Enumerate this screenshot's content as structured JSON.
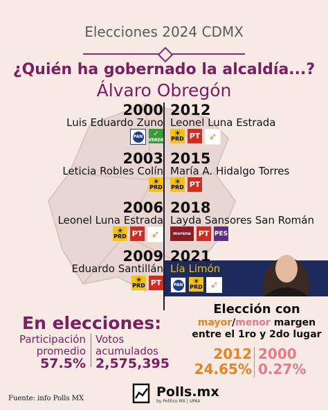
{
  "header": {
    "title": "Elecciones 2024 CDMX",
    "question": "¿Quién ha gobernado la alcaldía...?",
    "alcaldia": "Álvaro Obregón"
  },
  "timeline": [
    {
      "year": "2000",
      "name": "Luis Eduardo Zuno",
      "parties": [
        "PAN",
        "VERDE"
      ]
    },
    {
      "year": "2003",
      "name": "Leticia Robles Colín",
      "parties": [
        "PRD"
      ]
    },
    {
      "year": "2006",
      "name": "Leonel Luna Estrada",
      "parties": [
        "PRD",
        "PT",
        "MC"
      ]
    },
    {
      "year": "2009",
      "name": "Eduardo Santillán",
      "parties": [
        "PRD",
        "PT"
      ]
    },
    {
      "year": "2012",
      "name": "Leonel Luna Estrada",
      "parties": [
        "PRD",
        "PT",
        "MC"
      ]
    },
    {
      "year": "2015",
      "name": "María A. Hidalgo Torres",
      "parties": [
        "PRD",
        "PT"
      ]
    },
    {
      "year": "2018",
      "name": "Layda Sansores San Román",
      "parties": [
        "morena",
        "PT",
        "PES"
      ]
    },
    {
      "year": "2021",
      "name": "Lía Limón",
      "parties": [
        "PAN",
        "PRD",
        "MC"
      ]
    }
  ],
  "logo_labels": {
    "pan": "PAN",
    "verde": "VERDE",
    "prd": "PRD",
    "pt": "PT",
    "morena": "morena",
    "pes": "PES"
  },
  "stats": {
    "heading": "En elecciones:",
    "participation_label_1": "Participación",
    "participation_label_2": "promedio",
    "participation_value": "57.5%",
    "votes_label_1": "Votos",
    "votes_label_2": "acumulados",
    "votes_value": "2,575,395"
  },
  "margins": {
    "title_1": "Elección con",
    "mayor": "mayor",
    "slash": "/",
    "menor": "menor",
    "margen": " margen",
    "title_3": "entre el 1ro y 2do lugar",
    "max_year": "2012",
    "max_value": "24.65%",
    "min_year": "2000",
    "min_value": "0.27%"
  },
  "footer": {
    "source": "Fuente: info Polls MX",
    "brand": "Polls.mx",
    "brand_sub": "by Político MX | UPAX"
  },
  "colors": {
    "accent": "#7a1f5f",
    "background": "#f7e9e4",
    "highlight": "#1c2a5e",
    "mayor": "#e58520",
    "menor": "#e57b8a"
  }
}
